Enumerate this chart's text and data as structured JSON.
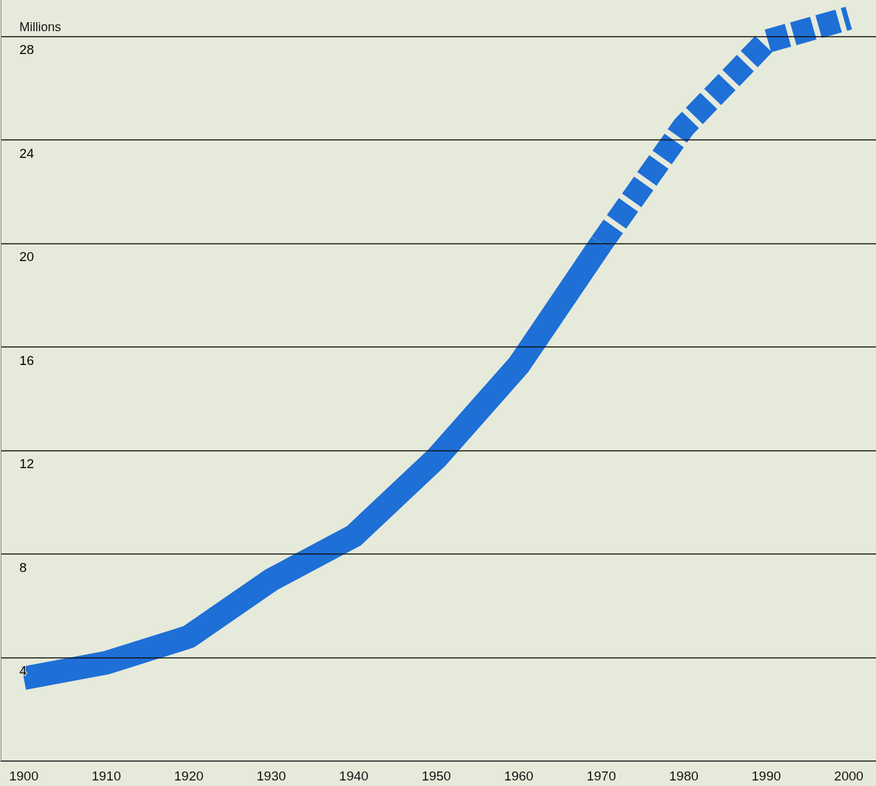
{
  "chart_data": {
    "type": "line",
    "ylabel": "Millions",
    "x": [
      1900,
      1910,
      1920,
      1930,
      1940,
      1950,
      1960,
      1970,
      1980,
      1990,
      2000
    ],
    "series": [
      {
        "color": "#1e6fd6",
        "line_style": "solid",
        "values": [
          3.2,
          3.8,
          4.8,
          7.0,
          8.7,
          11.7,
          15.3,
          20.0,
          null,
          null,
          null
        ]
      },
      {
        "color": "#1e6fd6",
        "line_style": "dashed",
        "values": [
          null,
          null,
          null,
          null,
          null,
          null,
          null,
          20.0,
          24.5,
          27.8,
          28.7
        ]
      }
    ],
    "xlim": [
      1897.2,
      2003.3
    ],
    "xticks": [
      1900,
      1910,
      1920,
      1930,
      1940,
      1950,
      1960,
      1970,
      1980,
      1990,
      2000
    ],
    "ylim": [
      0,
      29.4
    ],
    "yticks": [
      4,
      8,
      12,
      16,
      20,
      24,
      28
    ],
    "grid": "y",
    "marker": "none"
  }
}
